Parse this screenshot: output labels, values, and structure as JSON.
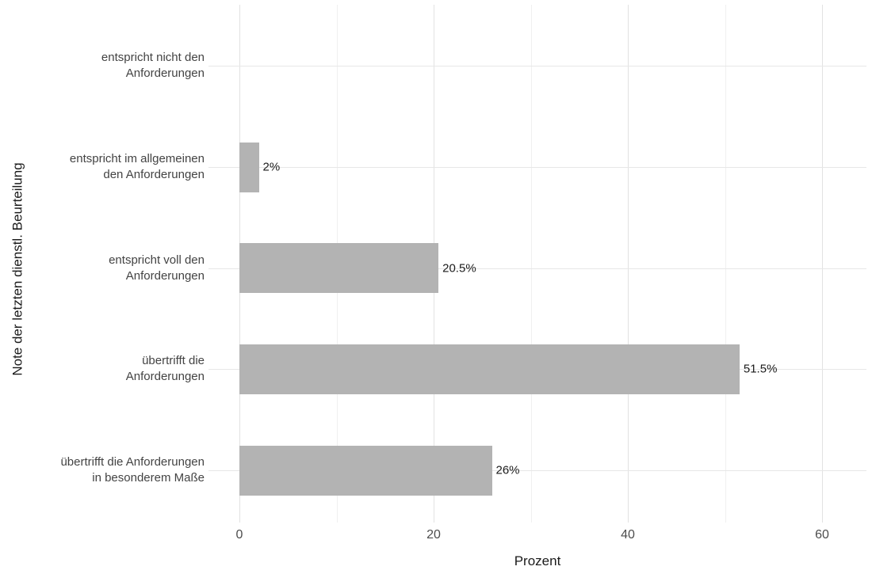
{
  "chart_data": {
    "type": "bar",
    "orientation": "horizontal",
    "title": "",
    "xlabel": "Prozent",
    "ylabel": "Note der letzten dienstl. Beurteilung",
    "categories": [
      "entspricht nicht den\nAnforderungen",
      "entspricht im allgemeinen\nden Anforderungen",
      "entspricht voll den\nAnforderungen",
      "übertrifft die\nAnforderungen",
      "übertrifft die Anforderungen\nin besonderem Maße"
    ],
    "values": [
      0,
      2,
      20.5,
      51.5,
      26
    ],
    "value_labels": [
      "",
      "2%",
      "20.5%",
      "51.5%",
      "26%"
    ],
    "xlim": [
      0,
      65
    ],
    "xticks": [
      0,
      20,
      40,
      60
    ],
    "xticks_minor": [
      10,
      30,
      50
    ],
    "grid": "on",
    "legend_position": "none",
    "bar_color": "#b3b3b3",
    "grid_major_color": "#e2e2e2",
    "grid_minor_color": "#f0f0f0",
    "background_color": "#ffffff"
  }
}
